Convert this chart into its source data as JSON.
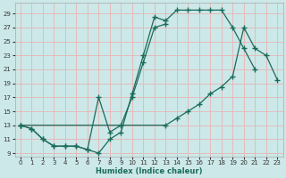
{
  "xlabel": "Humidex (Indice chaleur)",
  "bg_color": "#cce8e8",
  "plot_bg_color": "#cce8e8",
  "line_color": "#1a6b5a",
  "grid_color": "#e8b4b4",
  "xlim": [
    -0.5,
    23.5
  ],
  "ylim": [
    8.5,
    30.5
  ],
  "xticks": [
    0,
    1,
    2,
    3,
    4,
    5,
    6,
    7,
    8,
    9,
    10,
    11,
    12,
    13,
    14,
    15,
    16,
    17,
    18,
    19,
    20,
    21,
    22,
    23
  ],
  "yticks": [
    9,
    11,
    13,
    15,
    17,
    19,
    21,
    23,
    25,
    27,
    29
  ],
  "line1_x": [
    0,
    1,
    2,
    3,
    4,
    5,
    6,
    7,
    8,
    9,
    10,
    11,
    12,
    13,
    14,
    15,
    16,
    17,
    18,
    19,
    20,
    21
  ],
  "line1_y": [
    13,
    12.5,
    11,
    10,
    10,
    10,
    9.5,
    9,
    11,
    12,
    17.5,
    23,
    28.5,
    28,
    29.5,
    29.5,
    29.5,
    29.5,
    29.5,
    27,
    24,
    21
  ],
  "line2_x": [
    0,
    1,
    2,
    3,
    4,
    5,
    6,
    7,
    8,
    9,
    10,
    11,
    12,
    13
  ],
  "line2_y": [
    13,
    12.5,
    11,
    10,
    10,
    10,
    9.5,
    17,
    12,
    13,
    17,
    22,
    27,
    27.5
  ],
  "line3_x": [
    0,
    13,
    14,
    15,
    16,
    17,
    18,
    19,
    20,
    21,
    22,
    23
  ],
  "line3_y": [
    13,
    13,
    14,
    15,
    16,
    17.5,
    18.5,
    20,
    27,
    24,
    23,
    19.5
  ]
}
